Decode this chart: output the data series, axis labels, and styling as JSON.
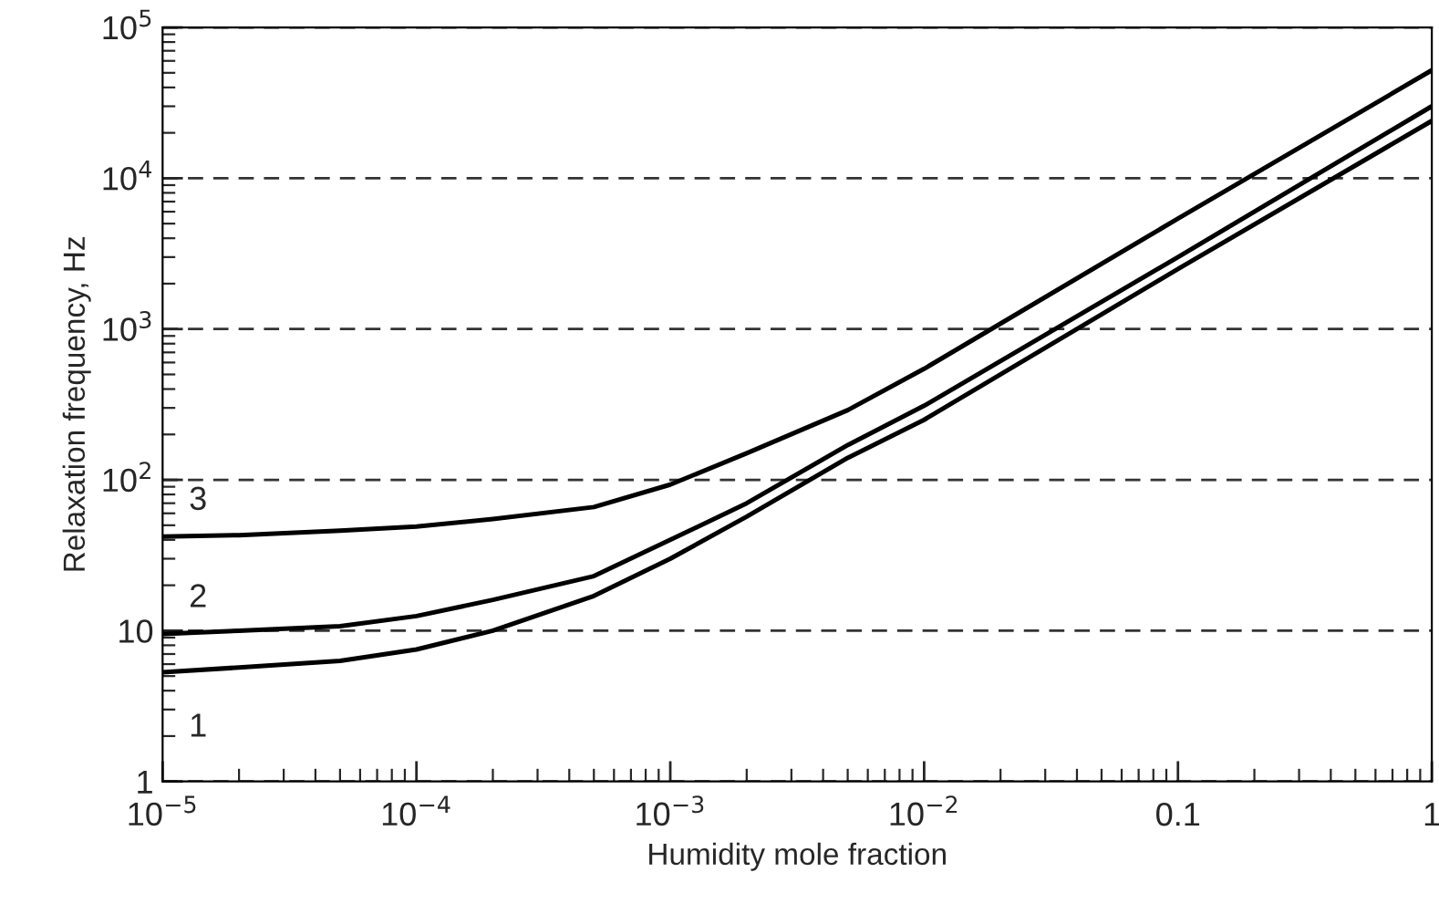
{
  "chart_data": {
    "type": "line",
    "xlabel": "Humidity mole fraction",
    "ylabel": "Relaxation frequency, Hz",
    "log": "xy",
    "grid": "y",
    "marker": "none",
    "line_style": "solid",
    "legend": false,
    "xlim": [
      1e-05,
      1
    ],
    "ylim": [
      1,
      100000
    ],
    "xticks": [
      {
        "value": 1e-05,
        "label": "10$^{−5}$"
      },
      {
        "value": 0.0001,
        "label": "10$^{−4}$"
      },
      {
        "value": 0.001,
        "label": "10$^{−3}$"
      },
      {
        "value": 0.01,
        "label": "10$^{−2}$"
      },
      0.1,
      1
    ],
    "yticks": [
      1,
      10,
      {
        "value": 100,
        "label": "10$^{2}$"
      },
      {
        "value": 1000,
        "label": "10$^{3}$"
      },
      {
        "value": 10000,
        "label": "10$^{4}$"
      },
      {
        "value": 100000,
        "label": "10$^{5}$"
      }
    ],
    "x": [
      1e-05,
      2e-05,
      5e-05,
      0.0001,
      0.0002,
      0.0005,
      0.001,
      0.002,
      0.005,
      0.01,
      0.1,
      1
    ],
    "series": [
      {
        "name": "1",
        "color": "#000000",
        "values": [
          5.3,
          5.7,
          6.3,
          7.5,
          10,
          17,
          30,
          57,
          140,
          250,
          2500,
          24000
        ]
      },
      {
        "name": "2",
        "color": "#000000",
        "values": [
          9.5,
          10,
          10.7,
          12.5,
          16,
          23,
          40,
          70,
          170,
          310,
          3000,
          30000
        ]
      },
      {
        "name": "3",
        "color": "#000000",
        "values": [
          42,
          43,
          46,
          49,
          55,
          66,
          93,
          150,
          290,
          545,
          5400,
          52000
        ]
      }
    ]
  }
}
